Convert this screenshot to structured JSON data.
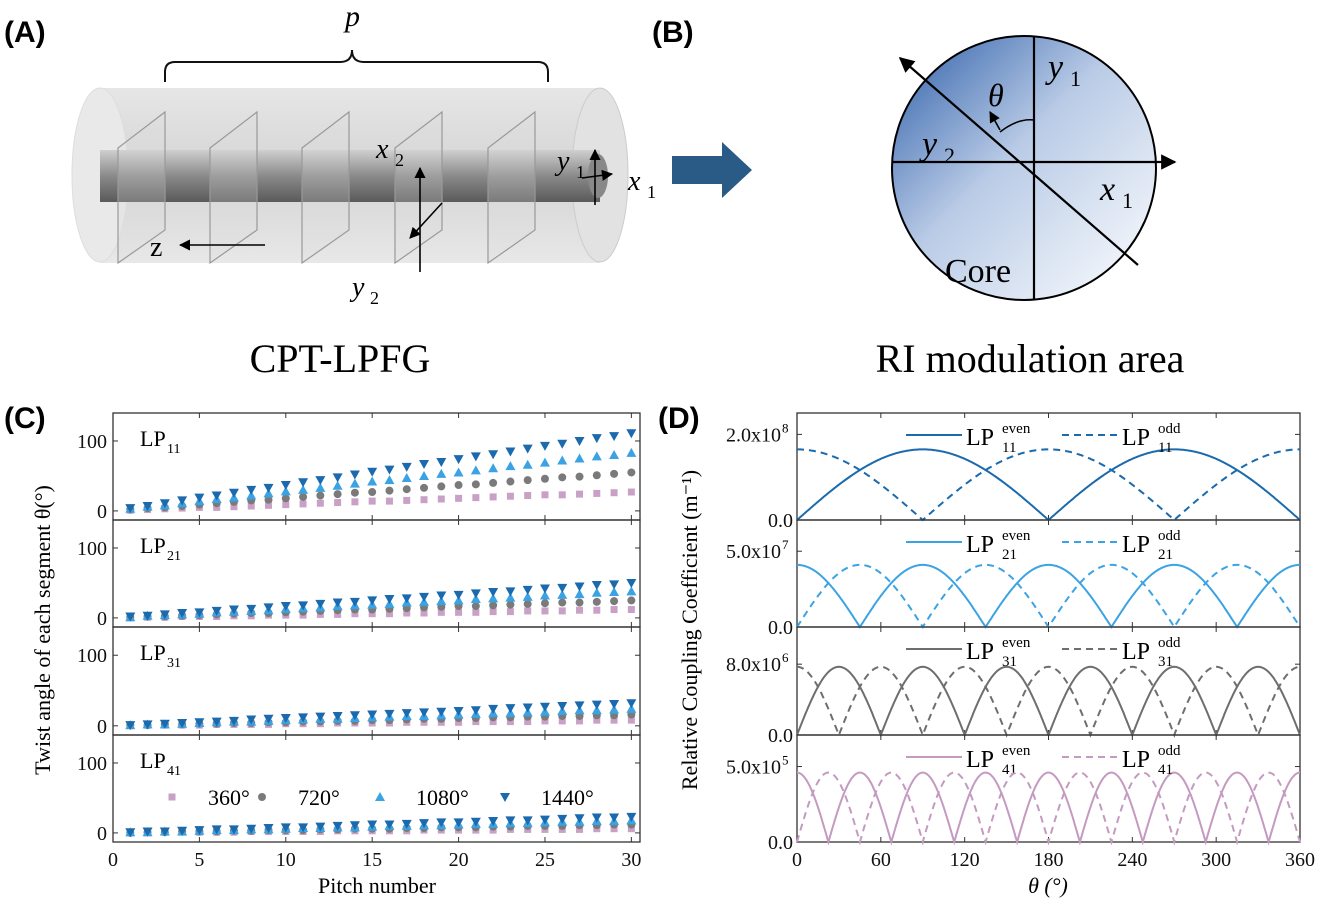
{
  "panel_a": {
    "label": "(A)",
    "period_symbol": "p",
    "axis_x2": "x",
    "axis_x2_sub": "2",
    "axis_y2": "y",
    "axis_y2_sub": "2",
    "axis_y1": "y",
    "axis_y1_sub": "1",
    "axis_x1": "x",
    "axis_x1_sub": "1",
    "axis_z": "z",
    "caption": "CPT-LPFG"
  },
  "panel_b": {
    "label": "(B)",
    "angle_symbol": "θ",
    "axis_y1": "y",
    "axis_y1_sub": "1",
    "axis_y2": "y",
    "axis_y2_sub": "2",
    "axis_x1": "x",
    "axis_x1_sub": "1",
    "core_label": "Core",
    "caption": "RI modulation area",
    "arrow_color": "#2a5a86"
  },
  "chart_data": [
    {
      "panel_label": "(C)",
      "type": "scatter",
      "xlabel": "Pitch number",
      "ylabel": "Twist angle of each segment θ(°)",
      "xlim": [
        0,
        30.5
      ],
      "xticks": [
        "0",
        "5",
        "10",
        "15",
        "20",
        "25",
        "30"
      ],
      "ylim": [
        -13,
        140
      ],
      "yticks": [
        "0",
        "100"
      ],
      "legend": {
        "placement": "inside-bottom-panel",
        "entries": [
          {
            "name": "360°",
            "marker": "square",
            "color": "#c9a1c6"
          },
          {
            "name": "720°",
            "marker": "circle",
            "color": "#7a7a7a"
          },
          {
            "name": "1080°",
            "marker": "triangle-up",
            "color": "#3ba3e3"
          },
          {
            "name": "1440°",
            "marker": "triangle-down",
            "color": "#1a6aad"
          }
        ]
      },
      "x": [
        1,
        2,
        3,
        4,
        5,
        6,
        7,
        8,
        9,
        10,
        11,
        12,
        13,
        14,
        15,
        16,
        17,
        18,
        19,
        20,
        21,
        22,
        23,
        24,
        25,
        26,
        27,
        28,
        29,
        30
      ],
      "subplots": [
        {
          "mode": "LP",
          "mode_sub": "11",
          "series": [
            {
              "name": "360°",
              "values": [
                1,
                2,
                3,
                4,
                5,
                5,
                6,
                7,
                8,
                9,
                10,
                11,
                12,
                13,
                14,
                14,
                15,
                16,
                17,
                18,
                19,
                20,
                21,
                22,
                23,
                23,
                24,
                25,
                26,
                27
              ]
            },
            {
              "name": "720°",
              "values": [
                2,
                4,
                5,
                7,
                9,
                11,
                13,
                15,
                16,
                18,
                20,
                22,
                24,
                26,
                27,
                29,
                31,
                33,
                35,
                37,
                38,
                40,
                42,
                44,
                46,
                48,
                49,
                51,
                53,
                55
              ]
            },
            {
              "name": "1080°",
              "values": [
                3,
                6,
                8,
                11,
                14,
                17,
                19,
                22,
                25,
                28,
                30,
                33,
                36,
                39,
                42,
                44,
                47,
                50,
                53,
                55,
                58,
                61,
                64,
                66,
                69,
                72,
                75,
                78,
                80,
                83
              ]
            },
            {
              "name": "1440°",
              "values": [
                4,
                7,
                11,
                15,
                19,
                22,
                26,
                30,
                33,
                37,
                41,
                44,
                48,
                52,
                56,
                59,
                63,
                67,
                70,
                74,
                78,
                81,
                85,
                89,
                93,
                96,
                100,
                104,
                107,
                111
              ]
            }
          ]
        },
        {
          "mode": "LP",
          "mode_sub": "21",
          "series": [
            {
              "name": "360°",
              "values": [
                0,
                1,
                1,
                2,
                2,
                2,
                3,
                3,
                4,
                4,
                4,
                5,
                5,
                6,
                6,
                6,
                7,
                7,
                8,
                8,
                8,
                9,
                9,
                10,
                10,
                10,
                11,
                11,
                12,
                12
              ]
            },
            {
              "name": "720°",
              "values": [
                1,
                2,
                2,
                3,
                4,
                5,
                6,
                7,
                7,
                8,
                9,
                10,
                11,
                12,
                12,
                13,
                14,
                15,
                16,
                17,
                17,
                18,
                19,
                20,
                21,
                22,
                22,
                23,
                24,
                25
              ]
            },
            {
              "name": "1080°",
              "values": [
                1,
                3,
                4,
                5,
                6,
                8,
                9,
                10,
                11,
                13,
                14,
                15,
                17,
                18,
                19,
                20,
                22,
                23,
                24,
                25,
                27,
                28,
                29,
                30,
                32,
                33,
                34,
                36,
                37,
                38
              ]
            },
            {
              "name": "1440°",
              "values": [
                2,
                3,
                5,
                7,
                8,
                10,
                12,
                13,
                15,
                17,
                18,
                20,
                22,
                23,
                25,
                27,
                28,
                30,
                32,
                33,
                35,
                37,
                38,
                40,
                42,
                43,
                45,
                47,
                48,
                50
              ]
            }
          ]
        },
        {
          "mode": "LP",
          "mode_sub": "31",
          "series": [
            {
              "name": "360°",
              "values": [
                0,
                1,
                1,
                1,
                1,
                2,
                2,
                2,
                2,
                3,
                3,
                3,
                4,
                4,
                4,
                4,
                5,
                5,
                5,
                5,
                6,
                6,
                6,
                6,
                7,
                7,
                7,
                8,
                8,
                8
              ]
            },
            {
              "name": "720°",
              "values": [
                1,
                1,
                2,
                2,
                3,
                3,
                4,
                4,
                5,
                5,
                6,
                6,
                7,
                7,
                8,
                8,
                9,
                10,
                10,
                11,
                11,
                12,
                12,
                13,
                13,
                14,
                14,
                15,
                15,
                16
              ]
            },
            {
              "name": "1080°",
              "values": [
                1,
                2,
                2,
                3,
                4,
                5,
                6,
                6,
                7,
                8,
                9,
                10,
                10,
                11,
                12,
                13,
                14,
                14,
                15,
                16,
                17,
                18,
                18,
                19,
                20,
                21,
                22,
                22,
                23,
                24
              ]
            },
            {
              "name": "1440°",
              "values": [
                1,
                2,
                3,
                4,
                5,
                6,
                7,
                9,
                10,
                11,
                12,
                13,
                14,
                15,
                16,
                17,
                18,
                19,
                20,
                21,
                22,
                24,
                25,
                26,
                27,
                28,
                29,
                30,
                31,
                32
              ]
            }
          ]
        },
        {
          "mode": "LP",
          "mode_sub": "41",
          "series": [
            {
              "name": "360°",
              "values": [
                0,
                0,
                1,
                1,
                1,
                1,
                1,
                2,
                2,
                2,
                2,
                2,
                3,
                3,
                3,
                3,
                3,
                4,
                4,
                4,
                4,
                4,
                5,
                5,
                5,
                5,
                5,
                6,
                6,
                6
              ]
            },
            {
              "name": "720°",
              "values": [
                0,
                1,
                1,
                2,
                2,
                2,
                3,
                3,
                4,
                4,
                4,
                5,
                5,
                6,
                6,
                6,
                7,
                7,
                8,
                8,
                8,
                9,
                9,
                10,
                10,
                10,
                11,
                11,
                12,
                12
              ]
            },
            {
              "name": "1080°",
              "values": [
                1,
                1,
                2,
                2,
                3,
                4,
                4,
                5,
                5,
                6,
                7,
                7,
                8,
                8,
                9,
                10,
                10,
                11,
                11,
                12,
                13,
                13,
                14,
                14,
                15,
                16,
                16,
                17,
                17,
                18
              ]
            },
            {
              "name": "1440°",
              "values": [
                1,
                2,
                2,
                3,
                4,
                5,
                5,
                6,
                7,
                8,
                8,
                9,
                10,
                11,
                12,
                12,
                13,
                14,
                15,
                15,
                16,
                17,
                18,
                18,
                19,
                20,
                21,
                22,
                22,
                23
              ]
            }
          ]
        }
      ]
    },
    {
      "panel_label": "(D)",
      "type": "line",
      "xlabel": "θ (°)",
      "ylabel": "Relative Coupling Coefficient (m⁻¹)",
      "xlim": [
        0,
        360
      ],
      "xticks": [
        "0",
        "60",
        "120",
        "180",
        "240",
        "300",
        "360"
      ],
      "subplots": [
        {
          "color": "#1a6aad",
          "ylim": [
            0,
            250000000.0
          ],
          "yticks": [
            {
              "value": 0,
              "label": "0.0"
            },
            {
              "value": 200000000.0,
              "label": "2.0x10",
              "exp": "8"
            }
          ],
          "series": [
            {
              "name": "LP",
              "sup": "even",
              "sub": "11",
              "style": "solid",
              "amplitude": 165000000.0,
              "form": "|sin(1θ)|"
            },
            {
              "name": "LP",
              "sup": "odd",
              "sub": "11",
              "style": "dashed",
              "amplitude": 165000000.0,
              "form": "|cos(1θ)|"
            }
          ]
        },
        {
          "color": "#3ba3e3",
          "ylim": [
            0,
            70600000.0
          ],
          "yticks": [
            {
              "value": 0,
              "label": "0.0"
            },
            {
              "value": 50000000.0,
              "label": "5.0x10",
              "exp": "7"
            }
          ],
          "series": [
            {
              "name": "LP",
              "sup": "even",
              "sub": "21",
              "style": "solid",
              "amplitude": 41000000.0,
              "form": "|cos(2θ)|"
            },
            {
              "name": "LP",
              "sup": "odd",
              "sub": "21",
              "style": "dashed",
              "amplitude": 41000000.0,
              "form": "|sin(2θ)|"
            }
          ]
        },
        {
          "color": "#6e6e6e",
          "ylim": [
            0,
            12200000.0
          ],
          "yticks": [
            {
              "value": 0,
              "label": "0.0"
            },
            {
              "value": 8000000.0,
              "label": "8.0x10",
              "exp": "6"
            }
          ],
          "series": [
            {
              "name": "LP",
              "sup": "even",
              "sub": "31",
              "style": "solid",
              "amplitude": 7700000.0,
              "form": "|sin(3θ)|"
            },
            {
              "name": "LP",
              "sup": "odd",
              "sub": "31",
              "style": "dashed",
              "amplitude": 7700000.0,
              "form": "|cos(3θ)|"
            }
          ]
        },
        {
          "color": "#c49ac0",
          "ylim": [
            0,
            709000.0
          ],
          "yticks": [
            {
              "value": 0,
              "label": "0.0"
            },
            {
              "value": 500000.0,
              "label": "5.0x10",
              "exp": "5"
            }
          ],
          "series": [
            {
              "name": "LP",
              "sup": "even",
              "sub": "41",
              "style": "solid",
              "amplitude": 460000.0,
              "form": "|cos(4θ)|"
            },
            {
              "name": "LP",
              "sup": "odd",
              "sub": "41",
              "style": "dashed",
              "amplitude": 460000.0,
              "form": "|sin(4θ)|"
            }
          ]
        }
      ]
    }
  ]
}
